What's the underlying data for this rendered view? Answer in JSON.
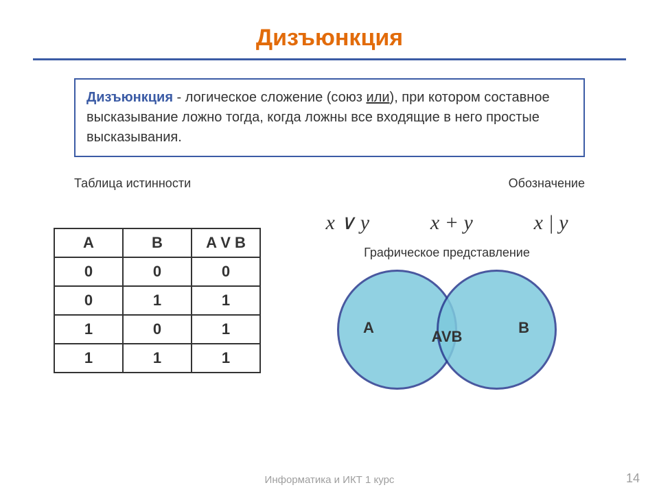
{
  "colors": {
    "title": "#e26b0a",
    "rule": "#3b5ba5",
    "def_border": "#3b5ba5",
    "def_term": "#3b5ba5",
    "body_text": "#333333",
    "table_border": "#333333",
    "circle_fill": "#7ec9dd",
    "circle_border": "#2a3b8f",
    "footer": "#9e9e9e"
  },
  "title": "Дизъюнкция",
  "definition": {
    "term": "Дизъюнкция",
    "rest_before": " - логическое сложение (союз ",
    "underline": "или",
    "rest_after": "), при котором составное высказывание ложно тогда, когда ложны все входящие в него простые высказывания."
  },
  "labels": {
    "truth_table": "Таблица истинности",
    "notation": "Обозначение",
    "graphic": "Графическое представление"
  },
  "notations": [
    "x ∨ y",
    "x + y",
    "x | y"
  ],
  "truth_table": {
    "headers": [
      "A",
      "B",
      "A V B"
    ],
    "rows": [
      [
        "0",
        "0",
        "0"
      ],
      [
        "0",
        "1",
        "1"
      ],
      [
        "1",
        "0",
        "1"
      ],
      [
        "1",
        "1",
        "1"
      ]
    ]
  },
  "venn": {
    "left": "A",
    "right": "B",
    "center": "AVB"
  },
  "footer": "Информатика и ИКТ 1 курс",
  "page": "14"
}
